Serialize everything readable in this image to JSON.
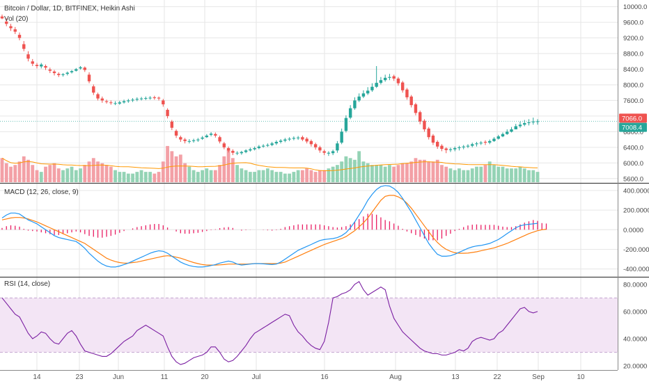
{
  "header": {
    "title": "Bitcoin / Dollar, 1D, BITFINEX, Heikin Ashi",
    "volume_label": "Vol (20)",
    "macd_label": "MACD (12, 26, close, 9)",
    "rsi_label": "RSI (14, close)"
  },
  "colors": {
    "up": "#26a69a",
    "down": "#ef5350",
    "volume_up": "#94d3b5",
    "volume_down": "#f3a0a6",
    "macd_line": "#2196f3",
    "signal_line": "#ff7f0e",
    "histogram": "#e91e63",
    "rsi_line": "#7b1fa2",
    "rsi_band": "#f3e5f5",
    "grid": "#e6e6e6",
    "separator": "#444444"
  },
  "chart_data": [
    {
      "type": "candlestick",
      "title": "Bitcoin / Dollar, 1D, BITFINEX, Heikin Ashi",
      "x_tick_labels": [
        "14",
        "23",
        "Jun",
        "11",
        "20",
        "Jul",
        "16",
        "Aug",
        "13",
        "22",
        "Sep",
        "10"
      ],
      "y_tick_labels": [
        "10000.0",
        "9600.0",
        "9200.0",
        "8800.0",
        "8400.0",
        "8000.0",
        "7600.0",
        "7200.0",
        "6800.0",
        "6400.0",
        "6000.0",
        "5600.0"
      ],
      "ylim": [
        5560,
        10100
      ],
      "y_ticks": [
        10000,
        9600,
        9200,
        8800,
        8400,
        8000,
        7600,
        7200,
        6800,
        6400,
        6000,
        5600
      ],
      "price_labels": [
        {
          "text": "7066.0",
          "value": 7066,
          "color": "#ef5350"
        },
        {
          "text": "7008.4",
          "value": 7008.4,
          "color": "#26a69a"
        }
      ],
      "reference_line": 7066,
      "ohlc_close": [
        9700,
        9560,
        9450,
        9360,
        9200,
        8920,
        8670,
        8540,
        8480,
        8520,
        8440,
        8360,
        8300,
        8250,
        8270,
        8310,
        8350,
        8400,
        8450,
        8380,
        8090,
        7800,
        7650,
        7600,
        7560,
        7540,
        7530,
        7550,
        7580,
        7600,
        7620,
        7640,
        7650,
        7660,
        7670,
        7660,
        7650,
        7500,
        7200,
        6900,
        6700,
        6600,
        6560,
        6560,
        6580,
        6600,
        6650,
        6700,
        6750,
        6700,
        6550,
        6400,
        6320,
        6260,
        6260,
        6280,
        6320,
        6350,
        6380,
        6420,
        6440,
        6460,
        6500,
        6540,
        6570,
        6600,
        6620,
        6640,
        6650,
        6600,
        6550,
        6480,
        6400,
        6320,
        6260,
        6260,
        6300,
        6500,
        6800,
        7150,
        7400,
        7600,
        7700,
        7780,
        7850,
        7950,
        8050,
        8120,
        8180,
        8200,
        8160,
        8040,
        7860,
        7680,
        7480,
        7280,
        7060,
        6860,
        6660,
        6520,
        6420,
        6360,
        6330,
        6350,
        6380,
        6400,
        6420,
        6440,
        6480,
        6500,
        6520,
        6520,
        6560,
        6620,
        6680,
        6740,
        6800,
        6860,
        6940,
        6980,
        7020,
        7040,
        7060,
        7066
      ],
      "ohlc_open": [
        9750,
        9620,
        9500,
        9420,
        9280,
        9040,
        8780,
        8600,
        8510,
        8470,
        8480,
        8390,
        8340,
        8280,
        8250,
        8280,
        8320,
        8360,
        8420,
        8440,
        8260,
        7960,
        7760,
        7650,
        7580,
        7550,
        7520,
        7520,
        7550,
        7580,
        7600,
        7620,
        7640,
        7650,
        7660,
        7680,
        7670,
        7600,
        7360,
        7060,
        6820,
        6660,
        6600,
        6550,
        6560,
        6580,
        6620,
        6660,
        6720,
        6740,
        6660,
        6500,
        6380,
        6310,
        6250,
        6250,
        6280,
        6320,
        6350,
        6380,
        6420,
        6440,
        6460,
        6500,
        6540,
        6570,
        6600,
        6620,
        6640,
        6660,
        6620,
        6560,
        6480,
        6400,
        6300,
        6240,
        6250,
        6320,
        6520,
        6820,
        7160,
        7400,
        7600,
        7700,
        7780,
        7860,
        7950,
        8050,
        8120,
        8180,
        8220,
        8160,
        8060,
        7880,
        7700,
        7500,
        7300,
        7080,
        6880,
        6700,
        6540,
        6440,
        6370,
        6330,
        6350,
        6380,
        6400,
        6420,
        6440,
        6480,
        6500,
        6540,
        6520,
        6560,
        6620,
        6680,
        6740,
        6800,
        6860,
        6940,
        6980,
        7020,
        7040,
        7060
      ],
      "ohlc_high": [
        9800,
        9700,
        9560,
        9480,
        9340,
        9120,
        8860,
        8660,
        8560,
        8560,
        8520,
        8440,
        8380,
        8320,
        8300,
        8340,
        8380,
        8430,
        8480,
        8470,
        8320,
        8010,
        7800,
        7700,
        7620,
        7600,
        7580,
        7590,
        7620,
        7640,
        7660,
        7680,
        7690,
        7700,
        7710,
        7720,
        7700,
        7640,
        7400,
        7100,
        6860,
        6700,
        6640,
        6610,
        6620,
        6640,
        6690,
        6740,
        6790,
        6780,
        6700,
        6540,
        6420,
        6350,
        6300,
        6310,
        6350,
        6390,
        6420,
        6460,
        6480,
        6500,
        6540,
        6580,
        6610,
        6640,
        6660,
        6680,
        6690,
        6700,
        6660,
        6600,
        6520,
        6440,
        6340,
        6300,
        6340,
        6560,
        6880,
        7220,
        7480,
        7680,
        7780,
        7860,
        7940,
        8040,
        8480,
        8200,
        8260,
        8280,
        8260,
        8200,
        8100,
        7920,
        7740,
        7540,
        7340,
        7120,
        6920,
        6740,
        6580,
        6480,
        6400,
        6390,
        6420,
        6440,
        6460,
        6480,
        6520,
        6540,
        6560,
        6580,
        6600,
        6660,
        6720,
        6780,
        6860,
        6920,
        7000,
        7060,
        7100,
        7120,
        7160,
        7120
      ],
      "ohlc_low": [
        9680,
        9500,
        9380,
        9300,
        9140,
        8860,
        8600,
        8480,
        8420,
        8420,
        8380,
        8300,
        8240,
        8200,
        8210,
        8240,
        8290,
        8340,
        8390,
        8330,
        8040,
        7740,
        7600,
        7540,
        7520,
        7490,
        7480,
        7490,
        7520,
        7540,
        7560,
        7580,
        7600,
        7610,
        7620,
        7620,
        7600,
        7440,
        7140,
        6840,
        6640,
        6540,
        6500,
        6500,
        6520,
        6540,
        6590,
        6640,
        6680,
        6650,
        6500,
        6350,
        6270,
        6200,
        6200,
        6210,
        6250,
        6290,
        6320,
        6350,
        6390,
        6410,
        6430,
        6460,
        6500,
        6530,
        6560,
        6580,
        6590,
        6560,
        6500,
        6420,
        6340,
        6260,
        6200,
        6180,
        6200,
        6260,
        6480,
        6780,
        7120,
        7360,
        7560,
        7660,
        7740,
        7820,
        7920,
        8010,
        8080,
        8120,
        8100,
        7980,
        7800,
        7620,
        7420,
        7220,
        6990,
        6800,
        6600,
        6460,
        6360,
        6300,
        6250,
        6280,
        6300,
        6320,
        6350,
        6380,
        6400,
        6420,
        6460,
        6460,
        6480,
        6540,
        6600,
        6660,
        6720,
        6780,
        6860,
        6900,
        6940,
        6960,
        6980,
        6980
      ],
      "volume": [
        28,
        22,
        18,
        20,
        24,
        30,
        26,
        20,
        14,
        12,
        18,
        20,
        22,
        16,
        14,
        16,
        18,
        14,
        16,
        20,
        24,
        28,
        24,
        22,
        20,
        18,
        14,
        12,
        12,
        10,
        10,
        12,
        14,
        12,
        12,
        10,
        12,
        24,
        42,
        36,
        30,
        32,
        22,
        18,
        14,
        12,
        14,
        16,
        14,
        14,
        20,
        30,
        38,
        28,
        20,
        16,
        14,
        12,
        12,
        14,
        14,
        16,
        14,
        12,
        12,
        10,
        10,
        12,
        14,
        14,
        16,
        14,
        12,
        14,
        14,
        16,
        18,
        20,
        24,
        30,
        28,
        26,
        36,
        24,
        22,
        20,
        20,
        20,
        18,
        20,
        18,
        20,
        22,
        22,
        24,
        28,
        26,
        26,
        24,
        24,
        26,
        20,
        18,
        16,
        14,
        16,
        14,
        14,
        16,
        18,
        18,
        20,
        24,
        20,
        18,
        18,
        16,
        16,
        16,
        18,
        16,
        14,
        14,
        12
      ],
      "volume_ma": [
        0.45
      ]
    },
    {
      "type": "line",
      "title": "MACD (12, 26, close, 9)",
      "y_tick_labels": [
        "400.0000",
        "200.0000",
        "0.0000",
        "-200.0000",
        "-400.0000"
      ],
      "ylim": [
        -480,
        470
      ],
      "y_ticks": [
        400,
        200,
        0,
        -200,
        -400
      ],
      "series": [
        {
          "name": "MACD",
          "values": [
            120,
            150,
            170,
            170,
            160,
            130,
            100,
            80,
            60,
            30,
            0,
            -30,
            -60,
            -80,
            -90,
            -100,
            -110,
            -120,
            -150,
            -190,
            -240,
            -280,
            -320,
            -350,
            -370,
            -380,
            -380,
            -370,
            -355,
            -340,
            -320,
            -300,
            -280,
            -260,
            -240,
            -225,
            -215,
            -220,
            -240,
            -270,
            -300,
            -330,
            -350,
            -365,
            -375,
            -380,
            -380,
            -375,
            -365,
            -355,
            -340,
            -330,
            -320,
            -330,
            -350,
            -360,
            -355,
            -350,
            -345,
            -345,
            -348,
            -352,
            -355,
            -350,
            -330,
            -300,
            -270,
            -240,
            -210,
            -190,
            -170,
            -150,
            -130,
            -110,
            -100,
            -95,
            -90,
            -80,
            -60,
            -30,
            20,
            80,
            150,
            220,
            300,
            360,
            410,
            440,
            450,
            445,
            420,
            380,
            320,
            250,
            180,
            100,
            20,
            -60,
            -140,
            -200,
            -250,
            -270,
            -270,
            -265,
            -250,
            -230,
            -210,
            -190,
            -175,
            -165,
            -160,
            -150,
            -140,
            -120,
            -100,
            -70,
            -40,
            -10,
            20,
            40,
            50,
            55,
            60,
            65
          ]
        },
        {
          "name": "Signal",
          "values": [
            100,
            110,
            120,
            125,
            125,
            120,
            110,
            95,
            80,
            60,
            40,
            20,
            0,
            -20,
            -40,
            -60,
            -80,
            -100,
            -120,
            -140,
            -170,
            -200,
            -230,
            -260,
            -290,
            -310,
            -325,
            -335,
            -340,
            -340,
            -335,
            -330,
            -320,
            -310,
            -300,
            -290,
            -280,
            -270,
            -265,
            -270,
            -280,
            -290,
            -305,
            -320,
            -335,
            -345,
            -355,
            -360,
            -360,
            -360,
            -358,
            -355,
            -350,
            -350,
            -350,
            -350,
            -350,
            -348,
            -345,
            -345,
            -345,
            -345,
            -345,
            -345,
            -340,
            -330,
            -310,
            -290,
            -270,
            -250,
            -230,
            -210,
            -190,
            -170,
            -150,
            -135,
            -120,
            -105,
            -90,
            -70,
            -40,
            -10,
            30,
            70,
            120,
            180,
            240,
            300,
            340,
            350,
            350,
            335,
            310,
            270,
            220,
            160,
            100,
            40,
            -20,
            -80,
            -130,
            -170,
            -200,
            -220,
            -235,
            -240,
            -240,
            -238,
            -232,
            -225,
            -215,
            -205,
            -195,
            -185,
            -170,
            -155,
            -140,
            -120,
            -100,
            -80,
            -60,
            -40,
            -25,
            -10,
            0,
            5
          ]
        },
        {
          "name": "Histogram",
          "values": [
            20,
            40,
            50,
            45,
            35,
            10,
            -10,
            -15,
            -20,
            -30,
            -40,
            -50,
            -60,
            -60,
            -50,
            -40,
            -30,
            -20,
            -30,
            -50,
            -70,
            -80,
            -90,
            -90,
            -80,
            -70,
            -55,
            -35,
            -15,
            0,
            15,
            30,
            40,
            50,
            60,
            65,
            65,
            50,
            25,
            0,
            -20,
            -40,
            -45,
            -45,
            -40,
            -35,
            -25,
            -15,
            -5,
            5,
            18,
            25,
            30,
            20,
            0,
            -10,
            -5,
            -2,
            0,
            0,
            -3,
            -7,
            -10,
            -5,
            10,
            30,
            40,
            50,
            60,
            60,
            60,
            60,
            60,
            60,
            50,
            40,
            30,
            25,
            30,
            40,
            60,
            90,
            120,
            150,
            180,
            180,
            170,
            140,
            110,
            95,
            70,
            45,
            10,
            -20,
            -40,
            -60,
            -80,
            -100,
            -120,
            -120,
            -120,
            -100,
            -70,
            -45,
            -15,
            10,
            30,
            48,
            57,
            60,
            55,
            55,
            55,
            55,
            45,
            35,
            30,
            30,
            40,
            60,
            80,
            95,
            110,
            100,
            75,
            70
          ]
        }
      ]
    },
    {
      "type": "line",
      "title": "RSI (14, close)",
      "y_tick_labels": [
        "80.0000",
        "60.0000",
        "40.0000",
        "20.0000"
      ],
      "ylim": [
        17,
        85
      ],
      "y_ticks": [
        80,
        60,
        40,
        20
      ],
      "band": [
        30,
        70
      ],
      "series": [
        {
          "name": "RSI",
          "values": [
            70,
            66,
            62,
            58,
            56,
            50,
            44,
            40,
            42,
            45,
            44,
            40,
            37,
            36,
            40,
            44,
            46,
            42,
            36,
            31,
            30,
            29,
            28,
            27,
            27,
            29,
            32,
            35,
            38,
            40,
            42,
            46,
            48,
            50,
            48,
            46,
            44,
            42,
            34,
            27,
            23,
            21,
            22,
            24,
            26,
            27,
            28,
            30,
            34,
            34,
            30,
            25,
            23,
            24,
            27,
            31,
            35,
            40,
            44,
            46,
            48,
            50,
            52,
            54,
            56,
            58,
            57,
            50,
            45,
            42,
            38,
            35,
            33,
            32,
            38,
            52,
            70,
            71,
            73,
            74,
            76,
            80,
            82,
            76,
            72,
            74,
            76,
            78,
            76,
            64,
            55,
            50,
            45,
            42,
            39,
            36,
            33,
            31,
            30,
            29,
            29,
            28,
            28,
            29,
            30,
            32,
            31,
            33,
            38,
            40,
            41,
            40,
            39,
            40,
            44,
            46,
            50,
            54,
            58,
            62,
            63,
            60,
            59,
            60
          ]
        }
      ]
    }
  ]
}
